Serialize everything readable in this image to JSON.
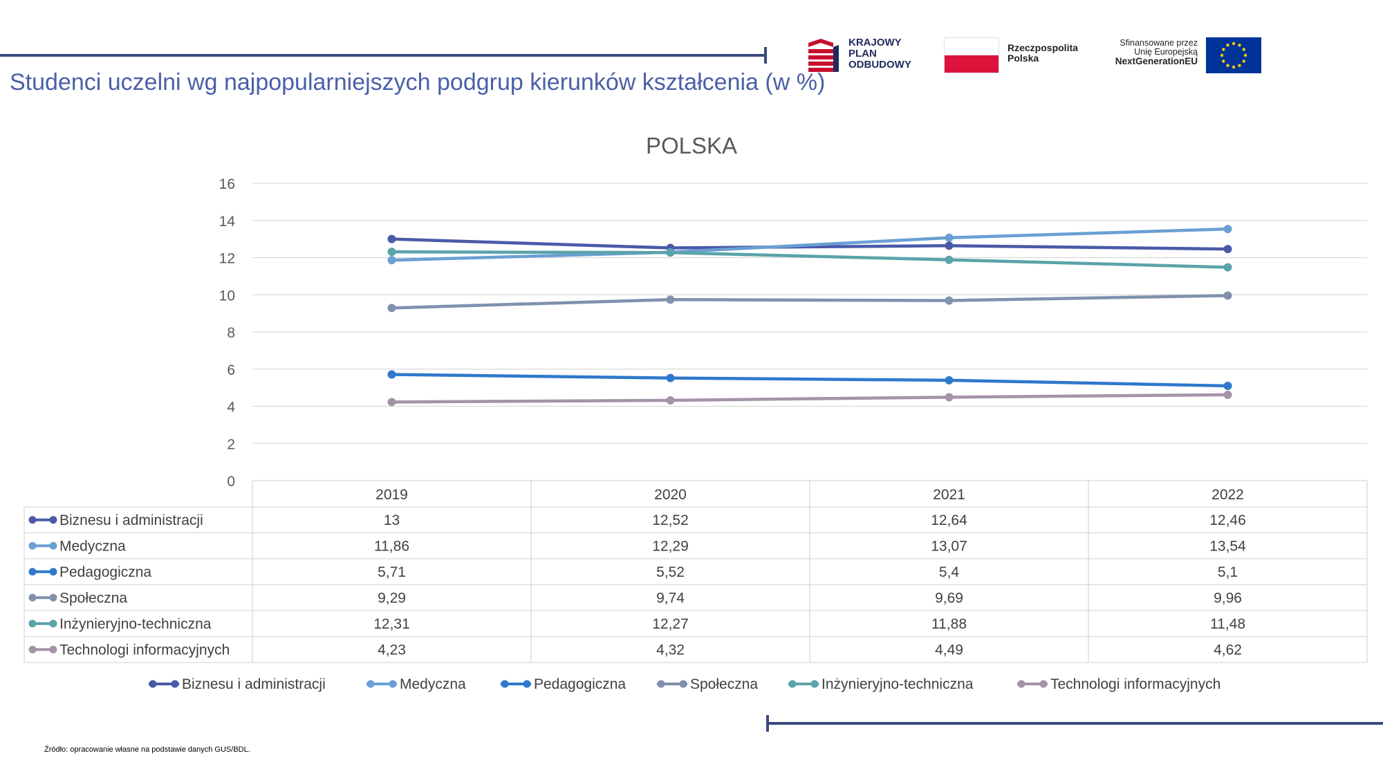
{
  "header": {
    "title": "Studenci uczelni wg najpopularniejszych podgrup kierunków kształcenia (w %)",
    "logos": {
      "kpo": {
        "lines": [
          "KRAJOWY",
          "PLAN",
          "ODBUDOWY"
        ],
        "color": "#c8102e",
        "text_color": "#1f2a5e"
      },
      "rp": {
        "lines": [
          "Rzeczpospolita",
          "Polska"
        ],
        "flag_top": "#ffffff",
        "flag_bottom": "#dc143c"
      },
      "eu": {
        "lines": [
          "Sfinansowane przez",
          "Unię Europejską",
          "NextGenerationEU"
        ],
        "flag_color": "#003399",
        "star_color": "#ffcc00"
      }
    }
  },
  "colors": {
    "accent_rule": "#3a4a7c",
    "title": "#4a5fa8",
    "grid": "#d9d9d9"
  },
  "chart_data": {
    "type": "line",
    "title": "POLSKA",
    "categories": [
      "2019",
      "2020",
      "2021",
      "2022"
    ],
    "ylim": [
      0,
      16
    ],
    "yticks": [
      "0",
      "2",
      "4",
      "6",
      "8",
      "10",
      "12",
      "14",
      "16"
    ],
    "grid": true,
    "legend_placement": "bottom",
    "data_table": true,
    "series": [
      {
        "name": "Biznesu i administracji",
        "values": [
          13,
          12.52,
          12.64,
          12.46
        ],
        "labels": [
          "13",
          "12,52",
          "12,64",
          "12,46"
        ],
        "color": "#4a5aa8"
      },
      {
        "name": "Medyczna",
        "values": [
          11.86,
          12.29,
          13.07,
          13.54
        ],
        "labels": [
          "11,86",
          "12,29",
          "13,07",
          "13,54"
        ],
        "color": "#6a9fd4"
      },
      {
        "name": "Pedagogiczna",
        "values": [
          5.71,
          5.52,
          5.4,
          5.1
        ],
        "labels": [
          "5,71",
          "5,52",
          "5,4",
          "5,1"
        ],
        "color": "#2f78cc"
      },
      {
        "name": "Społeczna",
        "values": [
          9.29,
          9.74,
          9.69,
          9.96
        ],
        "labels": [
          "9,29",
          "9,74",
          "9,69",
          "9,96"
        ],
        "color": "#8091ad"
      },
      {
        "name": "Inżynieryjno-techniczna",
        "values": [
          12.31,
          12.27,
          11.88,
          11.48
        ],
        "labels": [
          "12,31",
          "12,27",
          "11,88",
          "11,48"
        ],
        "color": "#5aa3aa"
      },
      {
        "name": "Technologi informacyjnych",
        "values": [
          4.23,
          4.32,
          4.49,
          4.62
        ],
        "labels": [
          "4,23",
          "4,32",
          "4,49",
          "4,62"
        ],
        "color": "#a493a8"
      }
    ]
  },
  "footer": {
    "source": "Źródło: opracowanie własne na podstawie danych GUS/BDL."
  }
}
